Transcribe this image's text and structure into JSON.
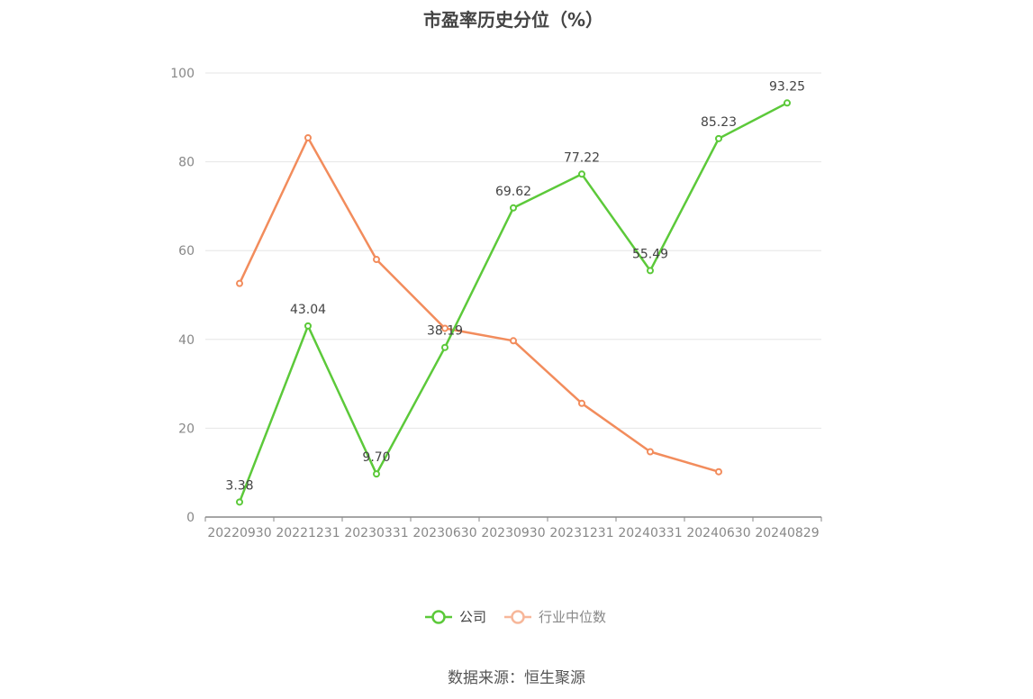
{
  "chart_data": {
    "type": "line",
    "title": "市盈率历史分位（%）",
    "categories": [
      "20220930",
      "20221231",
      "20230331",
      "20230630",
      "20230930",
      "20231231",
      "20240331",
      "20240630",
      "20240829"
    ],
    "ylim": [
      0,
      100
    ],
    "yticks": [
      0,
      20,
      40,
      60,
      80,
      100
    ],
    "grid": true,
    "legend_position": "bottom",
    "series": [
      {
        "name": "公司",
        "color": "#5cc93a",
        "show_labels": true,
        "values": [
          3.38,
          43.04,
          9.7,
          38.19,
          69.62,
          77.22,
          55.49,
          85.23,
          93.25
        ],
        "labels": [
          "3.38",
          "43.04",
          "9.70",
          "38.19",
          "69.62",
          "77.22",
          "55.49",
          "85.23",
          "93.25"
        ]
      },
      {
        "name": "行业中位数",
        "color": "#f28c5c",
        "show_labels": false,
        "values": [
          52.6,
          85.4,
          58.0,
          42.5,
          39.7,
          25.6,
          14.7,
          10.2,
          null
        ]
      }
    ]
  },
  "source": "数据来源：恒生聚源"
}
